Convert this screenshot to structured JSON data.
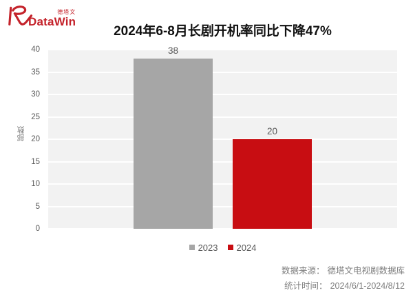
{
  "logo": {
    "brand": "DataWin",
    "brand_cn": "德塔文",
    "color": "#c4232b"
  },
  "title": {
    "text": "2024年6-8月长剧开机率同比下降47%"
  },
  "chart_data": {
    "type": "bar",
    "title": "2024年6-8月长剧开机率同比下降47%",
    "categories": [
      ""
    ],
    "series": [
      {
        "name": "2023",
        "values": [
          38
        ],
        "color": "#a6a6a6"
      },
      {
        "name": "2024",
        "values": [
          20
        ],
        "color": "#c80d12"
      }
    ],
    "xlabel": "",
    "ylabel": "部数",
    "ylim": [
      0,
      40
    ],
    "ytick_step": 5,
    "yticks": [
      0,
      5,
      10,
      15,
      20,
      25,
      30,
      35,
      40
    ],
    "grid": true,
    "data_labels": true,
    "legend_position": "bottom",
    "plot_background": "#f2f2f2"
  },
  "footer": {
    "source_label": "数据来源：",
    "source_value": "德塔文电视剧数据库",
    "time_label": "统计时间：",
    "time_value": "2024/6/1-2024/8/12"
  }
}
